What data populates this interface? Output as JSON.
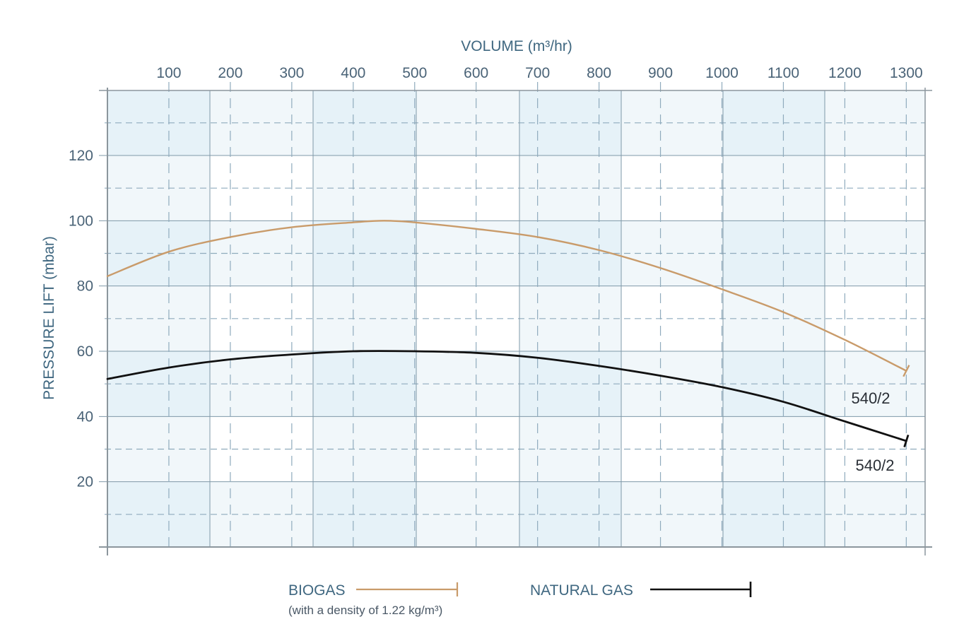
{
  "chart_data": {
    "type": "line",
    "title": "",
    "xlabel": "VOLUME (m³/hr)",
    "ylabel": "PRESSURE LIFT (mbar)",
    "xlim": [
      0,
      1330
    ],
    "ylim": [
      0,
      140
    ],
    "x_ticks": [
      100,
      200,
      300,
      400,
      500,
      600,
      700,
      800,
      900,
      1000,
      1100,
      1200,
      1300
    ],
    "y_ticks": [
      20,
      40,
      60,
      80,
      100,
      120
    ],
    "x_axis_position": "top",
    "grid": true,
    "legend_position": "bottom",
    "series": [
      {
        "name": "BIOGAS",
        "note": "(with a density of 1.22 kg/m³)",
        "color": "#c99b6a",
        "end_label": "540/2",
        "x": [
          0,
          100,
          200,
          300,
          400,
          450,
          500,
          600,
          700,
          800,
          900,
          1000,
          1100,
          1200,
          1300
        ],
        "values": [
          83,
          90.5,
          95,
          98,
          99.5,
          100,
          99.5,
          97.5,
          95,
          91,
          85.5,
          79,
          72,
          63.5,
          54
        ]
      },
      {
        "name": "NATURAL GAS",
        "color": "#111111",
        "end_label": "540/2",
        "x": [
          0,
          100,
          200,
          300,
          400,
          500,
          600,
          700,
          800,
          900,
          1000,
          1100,
          1200,
          1300
        ],
        "values": [
          51.5,
          55,
          57.5,
          59,
          60,
          60,
          59.5,
          58,
          55.5,
          52.5,
          49,
          44.5,
          38.5,
          32.5
        ]
      }
    ]
  },
  "legend": {
    "biogas_label": "BIOGAS",
    "biogas_note": "(with a density of 1.22 kg/m³)",
    "natural_gas_label": "NATURAL GAS"
  },
  "colors": {
    "band_dark": "#e6f2f8",
    "band_light": "#f1f7fa",
    "grid_solid": "#7f98a8",
    "grid_dashed": "#8fabbd",
    "axis": "#8c969d",
    "biogas": "#c99b6a",
    "natural_gas": "#111111"
  }
}
